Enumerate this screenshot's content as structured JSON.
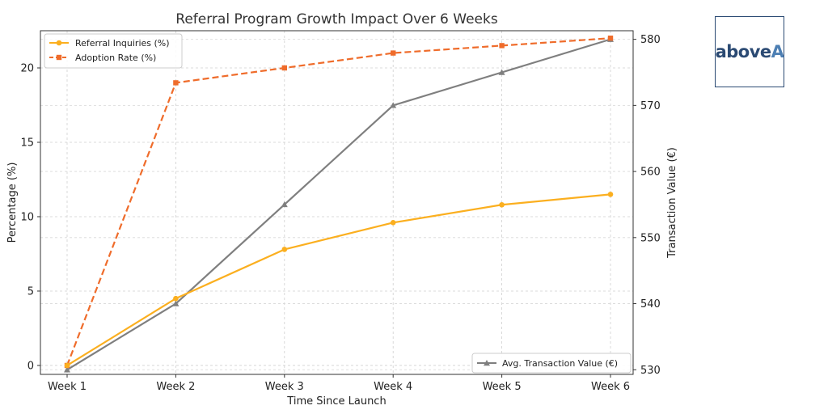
{
  "chart_data": {
    "type": "line",
    "title": "Referral Program Growth Impact Over 6 Weeks",
    "xlabel": "Time Since Launch",
    "ylabel": "Percentage (%)",
    "y2label": "Transaction Value (€)",
    "categories": [
      "Week 1",
      "Week 2",
      "Week 3",
      "Week 4",
      "Week 5",
      "Week 6"
    ],
    "ylim": [
      -0.6,
      22.5
    ],
    "y2lim": [
      529.3,
      581.3
    ],
    "yticks": [
      0,
      5,
      10,
      15,
      20
    ],
    "y2ticks": [
      530,
      540,
      550,
      560,
      570,
      580
    ],
    "grid": true,
    "series": [
      {
        "name": "Referral Inquiries (%)",
        "axis": "left",
        "color": "#fbaf1f",
        "marker": "circle",
        "dashed": false,
        "values": [
          0,
          4.5,
          7.8,
          9.6,
          10.8,
          11.5
        ]
      },
      {
        "name": "Adoption Rate (%)",
        "axis": "left",
        "color": "#ef6c2b",
        "marker": "square",
        "dashed": true,
        "values": [
          0,
          19,
          20,
          21,
          21.5,
          22
        ]
      },
      {
        "name": "Avg. Transaction Value (€)",
        "axis": "right",
        "color": "#7f7f7f",
        "marker": "triangle",
        "dashed": false,
        "values": [
          530,
          540,
          555,
          570,
          575,
          580
        ]
      }
    ],
    "legend_left_position": "top-left",
    "legend_right_position": "bottom-right"
  },
  "logo": {
    "part1": "above",
    "part2": "A"
  }
}
